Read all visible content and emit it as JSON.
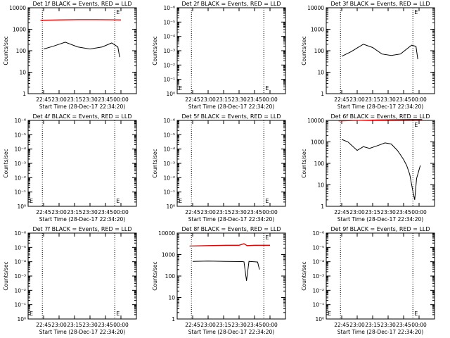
{
  "chart_data": [
    {
      "type": "line",
      "title": "Det 1f BLACK = Events, RED = LLD",
      "ylabel": "Counts/sec",
      "xlabel": "Start Time (28-Dec-17 22:34:20)",
      "x_ticks": [
        "22:45",
        "23:00",
        "23:15",
        "23:30",
        "23:45",
        "00:00"
      ],
      "y_ticks": [
        "1",
        "10",
        "100",
        "1000",
        "10000"
      ],
      "ylim": [
        1,
        10000
      ],
      "yscale": "log",
      "marker": "E",
      "series": [
        {
          "color": "#e00000",
          "x": [
            22.7,
            23.0,
            23.3,
            23.6,
            23.9,
            24.0
          ],
          "values": [
            2600,
            2700,
            2800,
            2800,
            2750,
            2700
          ]
        },
        {
          "color": "#000000",
          "x": [
            22.75,
            22.9,
            23.1,
            23.3,
            23.5,
            23.7,
            23.85,
            23.95,
            23.98
          ],
          "values": [
            120,
            160,
            250,
            150,
            120,
            150,
            230,
            150,
            50
          ]
        }
      ]
    },
    {
      "type": "line",
      "title": "Det 2f BLACK = Events, RED = LLD",
      "ylabel": "Counts/sec",
      "xlabel": "Start Time (28-Dec-17 22:34:20)",
      "x_ticks": [
        "22:45",
        "23:00",
        "23:15",
        "23:30",
        "23:45",
        "00:00"
      ],
      "y_ticks": [
        "10⁰",
        "10⁻¹",
        "10⁻²",
        "10⁻³",
        "10⁻⁴",
        "10⁻⁵",
        "10⁻⁶"
      ],
      "ylim": [
        1e-06,
        1
      ],
      "yscale": "log",
      "marker": "E",
      "series": []
    },
    {
      "type": "line",
      "title": "Det 3f BLACK = Events, RED = LLD",
      "ylabel": "Counts/sec",
      "xlabel": "Start Time (28-Dec-17 22:34:20)",
      "x_ticks": [
        "22:45",
        "23:00",
        "23:15",
        "23:30",
        "23:45",
        "00:00"
      ],
      "y_ticks": [
        "1",
        "10",
        "100",
        "1000",
        "10000"
      ],
      "ylim": [
        1,
        10000
      ],
      "yscale": "log",
      "marker": "E",
      "series": [
        {
          "color": "#000000",
          "x": [
            22.75,
            22.9,
            23.1,
            23.25,
            23.4,
            23.55,
            23.7,
            23.8,
            23.88,
            23.95,
            23.98
          ],
          "values": [
            55,
            90,
            200,
            140,
            70,
            60,
            70,
            120,
            180,
            160,
            40
          ]
        }
      ]
    },
    {
      "type": "line",
      "title": "Det 4f BLACK = Events, RED = LLD",
      "ylabel": "Counts/sec",
      "xlabel": "Start Time (28-Dec-17 22:34:20)",
      "x_ticks": [
        "22:45",
        "23:00",
        "23:15",
        "23:30",
        "23:45",
        "00:00"
      ],
      "y_ticks": [
        "10⁰",
        "10⁻¹",
        "10⁻²",
        "10⁻³",
        "10⁻⁴",
        "10⁻⁵",
        "10⁻⁶"
      ],
      "ylim": [
        1e-06,
        1
      ],
      "yscale": "log",
      "marker": "E",
      "series": []
    },
    {
      "type": "line",
      "title": "Det 5f BLACK = Events, RED = LLD",
      "ylabel": "Counts/sec",
      "xlabel": "Start Time (28-Dec-17 22:34:20)",
      "x_ticks": [
        "22:45",
        "23:00",
        "23:15",
        "23:30",
        "23:45",
        "00:00"
      ],
      "y_ticks": [
        "10⁰",
        "10⁻¹",
        "10⁻²",
        "10⁻³",
        "10⁻⁴",
        "10⁻⁵",
        "10⁻⁶"
      ],
      "ylim": [
        1e-06,
        1
      ],
      "yscale": "log",
      "marker": "E",
      "series": []
    },
    {
      "type": "line",
      "title": "Det 6f BLACK = Events, RED = LLD",
      "ylabel": "Counts/sec",
      "xlabel": "Start Time (28-Dec-17 22:34:20)",
      "x_ticks": [
        "22:45",
        "23:00",
        "23:15",
        "23:30",
        "23:45",
        "00:00"
      ],
      "y_ticks": [
        "1",
        "10",
        "100",
        "1000",
        "10000"
      ],
      "ylim": [
        1,
        10000
      ],
      "yscale": "log",
      "marker": "E",
      "series": [
        {
          "color": "#e00000",
          "x": [
            22.7,
            23.0,
            23.3,
            23.6,
            23.9,
            24.05
          ],
          "values": [
            9500,
            10000,
            10500,
            10800,
            11000,
            11000
          ]
        },
        {
          "color": "#000000",
          "x": [
            22.75,
            22.85,
            23.0,
            23.1,
            23.2,
            23.35,
            23.45,
            23.55,
            23.65,
            23.7,
            23.75,
            23.8,
            23.85,
            23.9,
            23.93,
            23.96,
            24.0,
            24.02
          ],
          "values": [
            1300,
            1000,
            400,
            600,
            500,
            700,
            900,
            800,
            400,
            250,
            150,
            80,
            30,
            5,
            2,
            20,
            50,
            80
          ]
        }
      ]
    },
    {
      "type": "line",
      "title": "Det 7f BLACK = Events, RED = LLD",
      "ylabel": "Counts/sec",
      "xlabel": "Start Time (28-Dec-17 22:34:20)",
      "x_ticks": [
        "22:45",
        "23:00",
        "23:15",
        "23:30",
        "23:45",
        "00:00"
      ],
      "y_ticks": [
        "10⁰",
        "10⁻¹",
        "10⁻²",
        "10⁻³",
        "10⁻⁴",
        "10⁻⁵",
        "10⁻⁶"
      ],
      "ylim": [
        1e-06,
        1
      ],
      "yscale": "log",
      "marker": "E",
      "series": []
    },
    {
      "type": "line",
      "title": "Det 8f BLACK = Events, RED = LLD",
      "ylabel": "Counts/sec",
      "xlabel": "Start Time (28-Dec-17 22:34:20)",
      "x_ticks": [
        "22:45",
        "23:00",
        "23:15",
        "23:30",
        "23:45",
        "00:00"
      ],
      "y_ticks": [
        "1",
        "10",
        "100",
        "1000",
        "10000"
      ],
      "ylim": [
        1,
        10000
      ],
      "yscale": "log",
      "marker": "E",
      "series": [
        {
          "color": "#e00000",
          "x": [
            22.7,
            23.0,
            23.3,
            23.5,
            23.58,
            23.63,
            23.75,
            24.0
          ],
          "values": [
            2500,
            2600,
            2700,
            2700,
            3200,
            2600,
            2700,
            2700
          ]
        },
        {
          "color": "#000000",
          "x": [
            22.75,
            23.0,
            23.3,
            23.55,
            23.58,
            23.62,
            23.66,
            23.7,
            23.75,
            23.8,
            23.83
          ],
          "values": [
            480,
            500,
            480,
            470,
            460,
            60,
            480,
            470,
            460,
            450,
            200
          ]
        }
      ]
    },
    {
      "type": "line",
      "title": "Det 9f BLACK = Events, RED = LLD",
      "ylabel": "Counts/sec",
      "xlabel": "Start Time (28-Dec-17 22:34:20)",
      "x_ticks": [
        "22:45",
        "23:00",
        "23:15",
        "23:30",
        "23:45",
        "00:00"
      ],
      "y_ticks": [
        "10⁰",
        "10⁻¹",
        "10⁻²",
        "10⁻³",
        "10⁻⁴",
        "10⁻⁵",
        "10⁻⁶"
      ],
      "ylim": [
        1e-06,
        1
      ],
      "yscale": "log",
      "marker": "E",
      "series": []
    }
  ],
  "x_axis": {
    "min": 22.5,
    "max": 24.25,
    "tick_values": [
      22.75,
      23.0,
      23.25,
      23.5,
      23.75,
      24.0
    ],
    "dotted_lines": [
      22.73,
      23.9
    ]
  }
}
